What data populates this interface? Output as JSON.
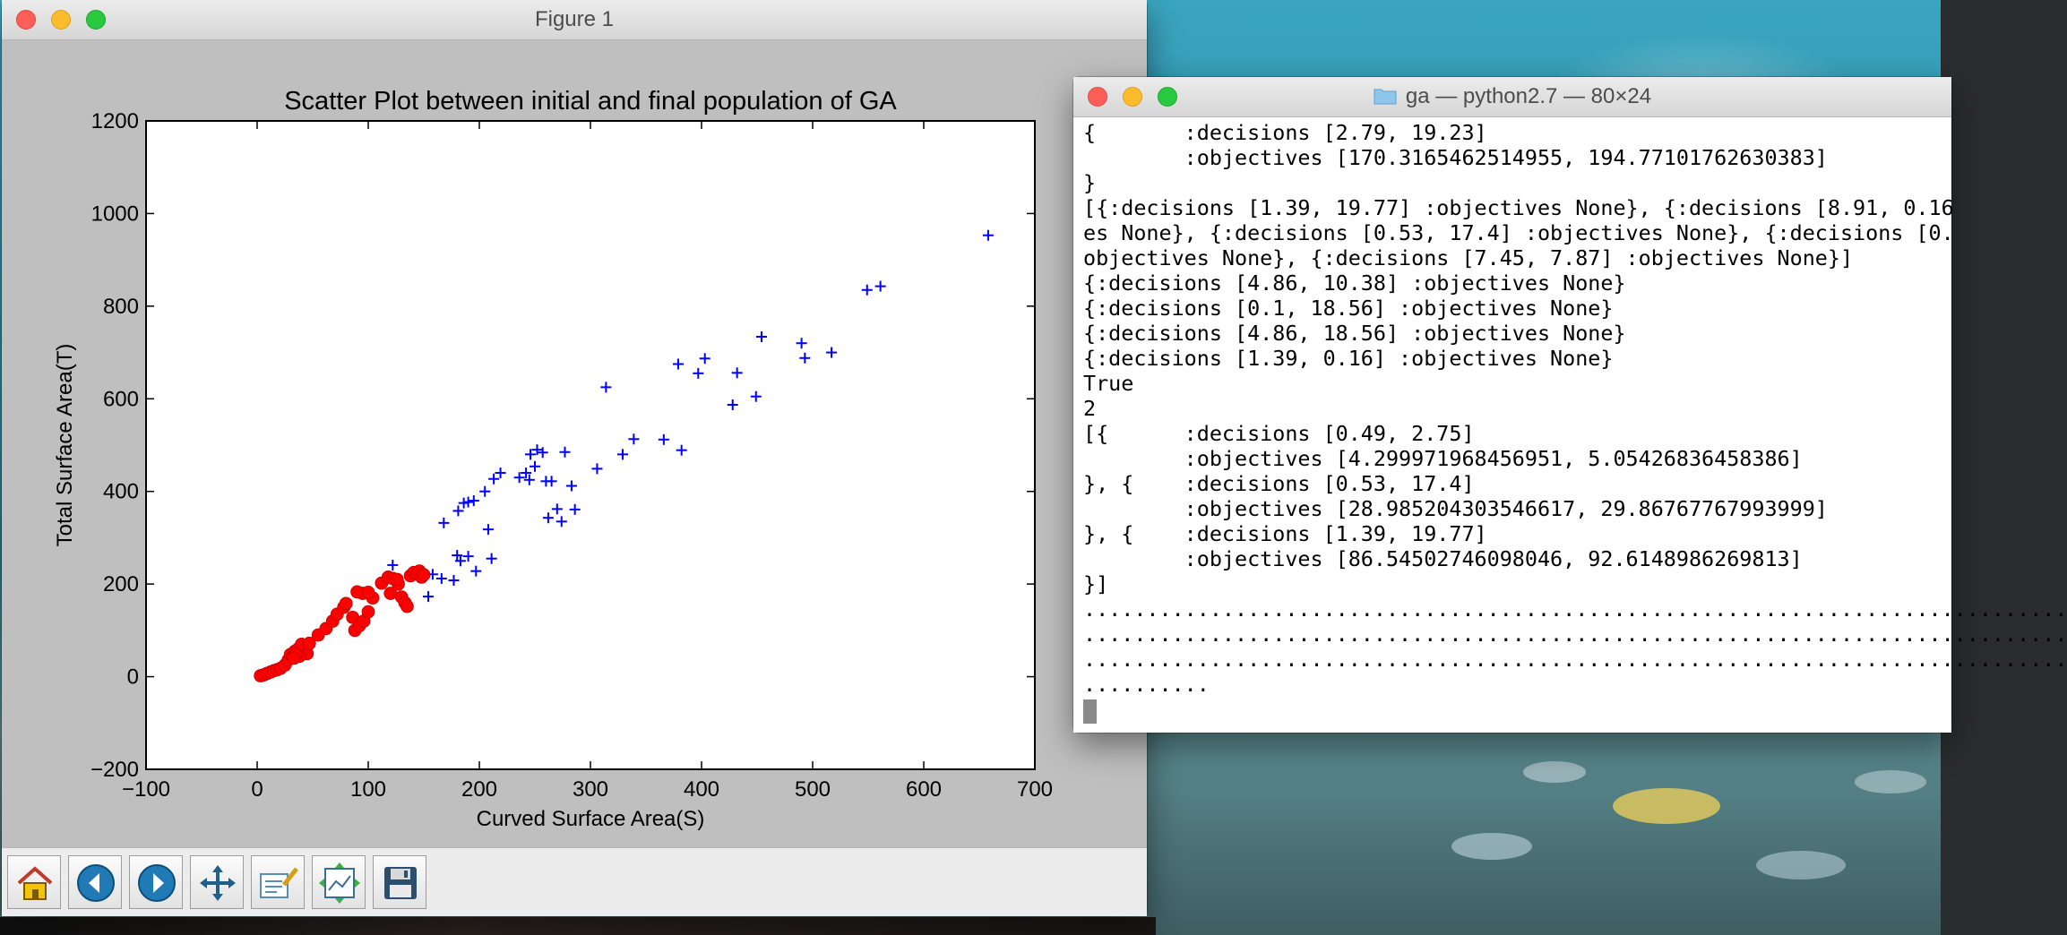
{
  "figure_window": {
    "title": "Figure 1",
    "toolbar": {
      "items": [
        {
          "name": "home-icon"
        },
        {
          "name": "back-arrow-icon"
        },
        {
          "name": "forward-arrow-icon"
        },
        {
          "name": "pan-move-icon"
        },
        {
          "name": "zoom-rect-icon"
        },
        {
          "name": "subplots-config-icon"
        },
        {
          "name": "save-floppy-icon"
        }
      ]
    }
  },
  "chart_data": {
    "type": "scatter",
    "title": "Scatter Plot between initial and final population of GA",
    "xlabel": "Curved Surface Area(S)",
    "ylabel": "Total Surface Area(T)",
    "xlim": [
      -100,
      700
    ],
    "ylim": [
      -200,
      1200
    ],
    "xticks": [
      -100,
      0,
      100,
      200,
      300,
      400,
      500,
      600,
      700
    ],
    "yticks": [
      -200,
      0,
      200,
      400,
      600,
      800,
      1000,
      1200
    ],
    "grid": false,
    "series": [
      {
        "color": "#0000ff",
        "marker": "+",
        "points": [
          [
            658,
            953
          ],
          [
            561,
            843
          ],
          [
            549,
            835
          ],
          [
            490,
            720
          ],
          [
            493,
            688
          ],
          [
            517,
            700
          ],
          [
            454,
            734
          ],
          [
            403,
            687
          ],
          [
            379,
            675
          ],
          [
            397,
            655
          ],
          [
            432,
            656
          ],
          [
            428,
            587
          ],
          [
            449,
            605
          ],
          [
            314,
            625
          ],
          [
            339,
            513
          ],
          [
            366,
            512
          ],
          [
            382,
            489
          ],
          [
            329,
            480
          ],
          [
            306,
            449
          ],
          [
            277,
            485
          ],
          [
            283,
            412
          ],
          [
            286,
            361
          ],
          [
            265,
            422
          ],
          [
            260,
            422
          ],
          [
            250,
            454
          ],
          [
            246,
            480
          ],
          [
            252,
            490
          ],
          [
            257,
            484
          ],
          [
            242,
            440
          ],
          [
            236,
            430
          ],
          [
            245,
            425
          ],
          [
            219,
            440
          ],
          [
            213,
            427
          ],
          [
            205,
            400
          ],
          [
            195,
            380
          ],
          [
            190,
            377
          ],
          [
            186,
            375
          ],
          [
            181,
            358
          ],
          [
            168,
            332
          ],
          [
            262,
            343
          ],
          [
            270,
            362
          ],
          [
            274,
            335
          ],
          [
            208,
            318
          ],
          [
            211,
            255
          ],
          [
            190,
            260
          ],
          [
            180,
            262
          ],
          [
            183,
            250
          ],
          [
            197,
            228
          ],
          [
            177,
            208
          ],
          [
            166,
            212
          ],
          [
            158,
            221
          ],
          [
            154,
            173
          ],
          [
            122,
            241
          ]
        ]
      },
      {
        "color": "#ff0000",
        "marker": "o",
        "points": [
          [
            3,
            2
          ],
          [
            6,
            4
          ],
          [
            9,
            7
          ],
          [
            12,
            10
          ],
          [
            15,
            13
          ],
          [
            18,
            15
          ],
          [
            21,
            18
          ],
          [
            25,
            25
          ],
          [
            28,
            36
          ],
          [
            30,
            48
          ],
          [
            32,
            43
          ],
          [
            34,
            55
          ],
          [
            37,
            60
          ],
          [
            40,
            70
          ],
          [
            43,
            65
          ],
          [
            45,
            50
          ],
          [
            47,
            72
          ],
          [
            38,
            44
          ],
          [
            35,
            48
          ],
          [
            33,
            40
          ],
          [
            55,
            90
          ],
          [
            62,
            104
          ],
          [
            68,
            120
          ],
          [
            72,
            135
          ],
          [
            78,
            150
          ],
          [
            80,
            158
          ],
          [
            86,
            128
          ],
          [
            88,
            100
          ],
          [
            92,
            110
          ],
          [
            96,
            120
          ],
          [
            100,
            140
          ],
          [
            104,
            170
          ],
          [
            95,
            180
          ],
          [
            90,
            183
          ],
          [
            100,
            182
          ],
          [
            112,
            202
          ],
          [
            118,
            215
          ],
          [
            122,
            212
          ],
          [
            127,
            200
          ],
          [
            130,
            172
          ],
          [
            133,
            160
          ],
          [
            135,
            152
          ],
          [
            138,
            218
          ],
          [
            141,
            225
          ],
          [
            144,
            222
          ],
          [
            146,
            228
          ],
          [
            148,
            215
          ],
          [
            150,
            220
          ],
          [
            126,
            210
          ],
          [
            120,
            180
          ]
        ]
      }
    ]
  },
  "terminal_window": {
    "title": "ga — python2.7 — 80×24",
    "lines": [
      "{       :decisions [2.79, 19.23]",
      "        :objectives [170.3165462514955, 194.77101762630383]",
      "}",
      "[{:decisions [1.39, 19.77] :objectives None}, {:decisions [8.91, 0.16",
      "es None}, {:decisions [0.53, 17.4] :objectives None}, {:decisions [0.",
      "objectives None}, {:decisions [7.45, 7.87] :objectives None}]",
      "{:decisions [4.86, 10.38] :objectives None}",
      "{:decisions [0.1, 18.56] :objectives None}",
      "{:decisions [4.86, 18.56] :objectives None}",
      "{:decisions [1.39, 0.16] :objectives None}",
      "True",
      "2",
      "[{      :decisions [0.49, 2.75]",
      "        :objectives [4.299971968456951, 5.05426836458386]",
      "}, {    :decisions [0.53, 17.4]",
      "        :objectives [28.985204303546617, 29.86767767993999]",
      "}, {    :decisions [1.39, 19.77]",
      "        :objectives [86.54502746098046, 92.6148986269813]",
      "}]",
      "..............................................................................",
      "..............................................................................",
      "..............................................................................",
      ".........."
    ]
  }
}
